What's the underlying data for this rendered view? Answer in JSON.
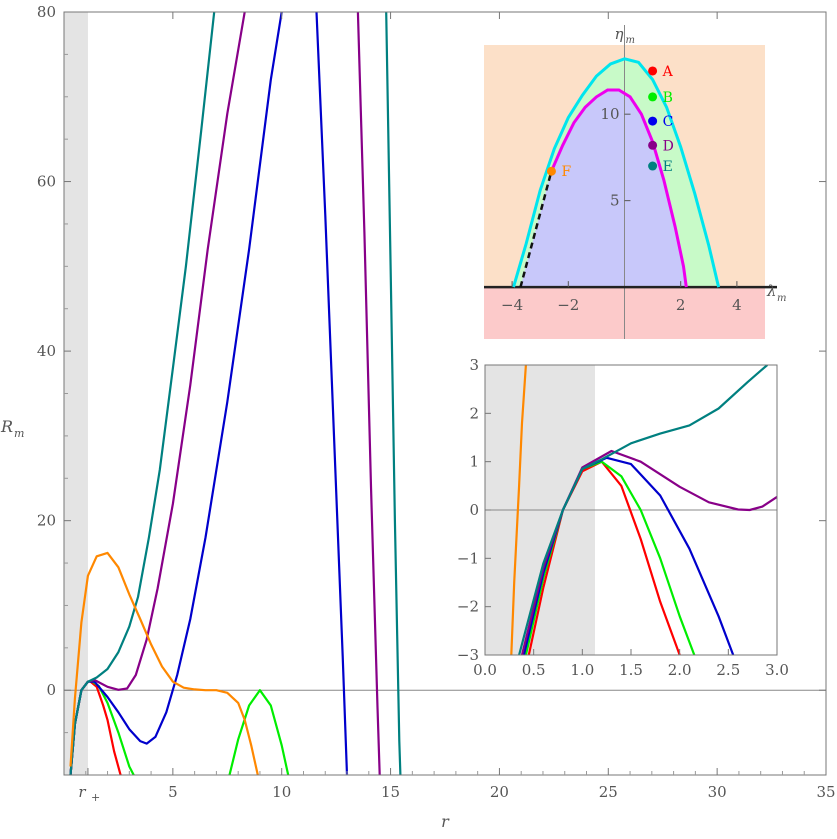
{
  "chart_data": [
    {
      "id": "main",
      "type": "line",
      "xlabel": "r",
      "ylabel": "R",
      "ylabel_sub": "m",
      "xlim": [
        0,
        35
      ],
      "ylim": [
        -10,
        80
      ],
      "xticks": [
        5,
        10,
        15,
        20,
        25,
        30,
        35
      ],
      "xtick_labels": [
        "5",
        "10",
        "15",
        "20",
        "25",
        "30",
        "35"
      ],
      "yticks": [
        0,
        20,
        40,
        60,
        80
      ],
      "ytick_labels": [
        "0",
        "20",
        "40",
        "60",
        "80"
      ],
      "horizon_tick": {
        "x": 1.1,
        "label": "r",
        "label_sub": "+"
      },
      "shaded_band": [
        0,
        1.1
      ],
      "series": [
        {
          "color": "#ff0000",
          "x": [
            0.3,
            0.5,
            0.8,
            1.1,
            1.2,
            1.5,
            1.8,
            2.0,
            2.3,
            2.6
          ],
          "y": [
            -10,
            -4,
            0,
            1,
            1.05,
            0.4,
            -1.8,
            -3.5,
            -7.2,
            -10
          ]
        },
        {
          "color": "#00ee00",
          "x": [
            0.3,
            0.5,
            0.8,
            1.1,
            1.3,
            1.6,
            2.0,
            2.5,
            3.0,
            3.2
          ],
          "y": [
            -10,
            -4,
            0,
            1,
            1.05,
            0.5,
            -1.5,
            -5,
            -9,
            -10
          ]
        },
        {
          "color": "#00ee00",
          "x": [
            7.6,
            8.0,
            8.5,
            9.0,
            9.5,
            10.0,
            10.3
          ],
          "y": [
            -10,
            -5.8,
            -1.8,
            0,
            -1.8,
            -6.5,
            -10
          ]
        },
        {
          "color": "#0000cc",
          "x": [
            0.3,
            0.5,
            0.8,
            1.1,
            1.4,
            2.0,
            2.5,
            3.0,
            3.5,
            3.8,
            4.2,
            4.7,
            5.2,
            5.8,
            6.5,
            7.5,
            8.5,
            9.5,
            10.0
          ],
          "y": [
            -10,
            -4,
            0,
            1,
            1.0,
            -0.8,
            -2.6,
            -4.6,
            -6.0,
            -6.3,
            -5.5,
            -2.6,
            1.8,
            8.4,
            18,
            34,
            52,
            72,
            80
          ]
        },
        {
          "color": "#0000cc",
          "x": [
            11.6,
            12.0,
            12.4,
            12.8,
            13.0
          ],
          "y": [
            80,
            56,
            30,
            4,
            -10
          ]
        },
        {
          "color": "#880088",
          "x": [
            0.3,
            0.5,
            0.8,
            1.1,
            1.4,
            2.0,
            2.5,
            2.9,
            3.3,
            3.8,
            4.3,
            5.0,
            5.8,
            6.6,
            7.5,
            8.3
          ],
          "y": [
            -10,
            -4,
            0,
            1,
            1.2,
            0.4,
            0.05,
            0.2,
            1.8,
            6,
            12,
            22,
            36,
            52,
            68,
            80
          ]
        },
        {
          "color": "#880088",
          "x": [
            13.5,
            13.8,
            14.1,
            14.4,
            14.5
          ],
          "y": [
            80,
            54,
            24,
            -2,
            -10
          ]
        },
        {
          "color": "#008080",
          "x": [
            0.3,
            0.5,
            0.8,
            1.1,
            1.5,
            2.0,
            2.5,
            3.0,
            3.4,
            3.9,
            4.4,
            5.0,
            5.6,
            6.3,
            6.9
          ],
          "y": [
            -10,
            -4,
            0,
            1,
            1.5,
            2.5,
            4.5,
            7.5,
            11,
            18,
            26,
            38,
            50,
            66,
            80
          ]
        },
        {
          "color": "#008080",
          "x": [
            14.8,
            15.0,
            15.2,
            15.4,
            15.45
          ],
          "y": [
            80,
            50,
            20,
            -6,
            -10
          ]
        },
        {
          "color": "#ff8800",
          "x": [
            0.3,
            0.5,
            0.8,
            1.1,
            1.5,
            2.0,
            2.5,
            3.0,
            3.5,
            4.0,
            4.5,
            5.0,
            5.5,
            6.0,
            6.5,
            7.0,
            7.5,
            8.0,
            8.3,
            8.6,
            8.9
          ],
          "y": [
            -9,
            -1,
            8,
            13.5,
            15.8,
            16.2,
            14.5,
            11.3,
            8.4,
            5.4,
            2.8,
            1.0,
            0.3,
            0.1,
            0,
            0,
            -0.3,
            -1.5,
            -3.5,
            -6.5,
            -10
          ]
        }
      ]
    },
    {
      "id": "parameter-inset",
      "type": "area",
      "xlabel": "λ",
      "xlabel_sub": "m",
      "ylabel": "η",
      "ylabel_sub": "m",
      "xlim": [
        -5,
        5
      ],
      "ylim": [
        -3,
        14
      ],
      "xticks": [
        -4,
        -2,
        2,
        4
      ],
      "xtick_labels": [
        "−4",
        "−2",
        "2",
        "4"
      ],
      "yticks": [
        5,
        10
      ],
      "ytick_labels": [
        "5",
        "10"
      ],
      "regions": {
        "background_color": "#fce0c8",
        "negative_eta_color": "#fccaca",
        "outer_region_color": "#c8fac8",
        "inner_region_color": "#c8c8fa"
      },
      "curves": [
        {
          "name_color": "cyan",
          "color": "#00e5ee",
          "x": [
            -3.95,
            -3.5,
            -3.0,
            -2.5,
            -2.0,
            -1.5,
            -1.0,
            -0.5,
            0.0,
            0.5,
            1.0,
            1.5,
            2.0,
            2.5,
            3.0,
            3.35
          ],
          "y": [
            0,
            2.5,
            5.6,
            8.0,
            9.8,
            11.1,
            12.2,
            12.9,
            13.2,
            13.0,
            12.0,
            10.4,
            8.1,
            5.4,
            2.4,
            0
          ]
        },
        {
          "name_color": "magenta",
          "color": "#ee00ee",
          "x": [
            -2.6,
            -2.2,
            -1.8,
            -1.4,
            -1.0,
            -0.6,
            -0.2,
            0.2,
            0.6,
            1.0,
            1.4,
            1.8,
            2.1,
            2.2
          ],
          "y": [
            6.7,
            8.2,
            9.5,
            10.4,
            11.0,
            11.4,
            11.4,
            11.0,
            10.0,
            8.4,
            6.2,
            3.5,
            1.2,
            0
          ]
        }
      ],
      "dashed_segment": {
        "x": [
          -3.7,
          -2.6
        ],
        "y": [
          0,
          6.7
        ]
      },
      "points": [
        {
          "label": "A",
          "color": "#ff0000",
          "x": 1.0,
          "y": 12.5
        },
        {
          "label": "B",
          "color": "#00ee00",
          "x": 1.0,
          "y": 11.0
        },
        {
          "label": "C",
          "color": "#0000ee",
          "x": 1.0,
          "y": 9.6
        },
        {
          "label": "D",
          "color": "#880088",
          "x": 1.0,
          "y": 8.2
        },
        {
          "label": "E",
          "color": "#008080",
          "x": 1.0,
          "y": 7.0
        },
        {
          "label": "F",
          "color": "#ff8800",
          "x": -2.6,
          "y": 6.7
        }
      ]
    },
    {
      "id": "zoom-inset",
      "type": "line",
      "xlim": [
        0,
        3
      ],
      "ylim": [
        -3,
        3
      ],
      "xticks": [
        0.0,
        0.5,
        1.0,
        1.5,
        2.0,
        2.5,
        3.0
      ],
      "xtick_labels": [
        "0.0",
        "0.5",
        "1.0",
        "1.5",
        "2.0",
        "2.5",
        "3.0"
      ],
      "yticks": [
        -3,
        -2,
        -1,
        0,
        1,
        2,
        3
      ],
      "ytick_labels": [
        "−3",
        "−2",
        "−1",
        "0",
        "1",
        "2",
        "3"
      ],
      "shaded_band": [
        0,
        1.13
      ],
      "series": [
        {
          "color": "#ff0000",
          "x": [
            0.45,
            0.6,
            0.8,
            1.0,
            1.2,
            1.4,
            1.6,
            1.8,
            2.0
          ],
          "y": [
            -3,
            -1.6,
            0,
            0.8,
            1.0,
            0.5,
            -0.6,
            -1.9,
            -3
          ]
        },
        {
          "color": "#00ee00",
          "x": [
            0.42,
            0.6,
            0.8,
            1.0,
            1.2,
            1.4,
            1.6,
            1.8,
            2.0,
            2.15
          ],
          "y": [
            -3,
            -1.4,
            0,
            0.85,
            1.0,
            0.7,
            0.0,
            -1.0,
            -2.2,
            -3
          ]
        },
        {
          "color": "#0000cc",
          "x": [
            0.4,
            0.6,
            0.8,
            1.0,
            1.25,
            1.5,
            1.8,
            2.1,
            2.4,
            2.55
          ],
          "y": [
            -3,
            -1.3,
            0,
            0.85,
            1.08,
            0.95,
            0.3,
            -0.8,
            -2.2,
            -3
          ]
        },
        {
          "color": "#880088",
          "x": [
            0.38,
            0.6,
            0.8,
            1.0,
            1.3,
            1.6,
            2.0,
            2.3,
            2.6,
            2.72,
            2.85,
            3.0
          ],
          "y": [
            -3,
            -1.2,
            0,
            0.88,
            1.22,
            1.0,
            0.48,
            0.16,
            0.01,
            0.0,
            0.07,
            0.27
          ]
        },
        {
          "color": "#008080",
          "x": [
            0.35,
            0.6,
            0.8,
            1.0,
            1.2,
            1.5,
            1.8,
            2.1,
            2.4,
            2.7,
            2.9
          ],
          "y": [
            -3,
            -1.1,
            0,
            0.85,
            1.05,
            1.38,
            1.58,
            1.75,
            2.1,
            2.65,
            3.0
          ]
        },
        {
          "color": "#ff8800",
          "x": [
            0.27,
            0.3,
            0.35,
            0.38,
            0.42
          ],
          "y": [
            -3,
            -1.5,
            0.5,
            1.8,
            3.0
          ]
        }
      ]
    }
  ]
}
